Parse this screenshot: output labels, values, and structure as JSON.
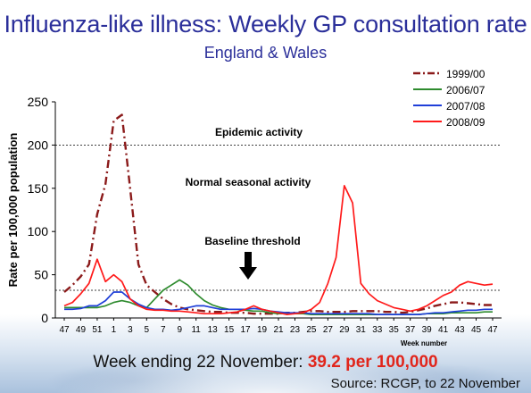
{
  "header": {
    "title": "Influenza-like illness: Weekly GP consultation rate",
    "subtitle": "England & Wales"
  },
  "chart_data": {
    "type": "line",
    "ylabel": "Rate per 100,000 population",
    "xlabel": "Week number",
    "ylim": [
      0,
      250
    ],
    "yticks": [
      0,
      50,
      100,
      150,
      200,
      250
    ],
    "x_labels": [
      "47",
      "49",
      "51",
      "1",
      "3",
      "5",
      "7",
      "9",
      "11",
      "13",
      "15",
      "17",
      "19",
      "21",
      "23",
      "25",
      "27",
      "29",
      "31",
      "33",
      "35",
      "37",
      "39",
      "41",
      "43",
      "45",
      "47"
    ],
    "weeks": [
      "47",
      "48",
      "49",
      "50",
      "51",
      "52",
      "1",
      "2",
      "3",
      "4",
      "5",
      "6",
      "7",
      "8",
      "9",
      "10",
      "11",
      "12",
      "13",
      "14",
      "15",
      "16",
      "17",
      "18",
      "19",
      "20",
      "21",
      "22",
      "23",
      "24",
      "25",
      "26",
      "27",
      "28",
      "29",
      "30",
      "31",
      "32",
      "33",
      "34",
      "35",
      "36",
      "37",
      "38",
      "39",
      "40",
      "41",
      "42",
      "43",
      "44",
      "45",
      "46",
      "47"
    ],
    "thresholds": [
      {
        "value": 200,
        "label": "Epidemic activity"
      },
      {
        "value": 32,
        "label": "Baseline threshold"
      }
    ],
    "annotations": [
      "Normal seasonal activity"
    ],
    "series": [
      {
        "name": "1999/00",
        "color": "#8b1a1a",
        "style": "dashdot",
        "values": [
          30,
          38,
          48,
          62,
          120,
          155,
          228,
          235,
          150,
          62,
          38,
          30,
          22,
          16,
          12,
          10,
          9,
          8,
          7,
          7,
          6,
          6,
          6,
          5,
          5,
          5,
          5,
          6,
          6,
          7,
          8,
          8,
          7,
          7,
          7,
          8,
          8,
          8,
          8,
          7,
          7,
          6,
          7,
          9,
          11,
          14,
          16,
          18,
          18,
          17,
          16,
          15,
          15
        ]
      },
      {
        "name": "2006/07",
        "color": "#2e8b2e",
        "style": "solid",
        "values": [
          12,
          12,
          12,
          12,
          12,
          14,
          18,
          20,
          18,
          14,
          12,
          22,
          32,
          38,
          44,
          38,
          28,
          20,
          15,
          12,
          10,
          10,
          9,
          8,
          8,
          6,
          5,
          5,
          5,
          5,
          4,
          4,
          4,
          4,
          4,
          4,
          4,
          4,
          4,
          4,
          4,
          4,
          4,
          4,
          5,
          5,
          5,
          6,
          6,
          6,
          6,
          7,
          7
        ]
      },
      {
        "name": "2007/08",
        "color": "#1f3fd8",
        "style": "solid",
        "values": [
          10,
          10,
          11,
          14,
          14,
          20,
          30,
          30,
          22,
          16,
          12,
          10,
          10,
          9,
          10,
          12,
          14,
          14,
          12,
          10,
          10,
          10,
          10,
          11,
          10,
          8,
          7,
          6,
          6,
          6,
          5,
          5,
          5,
          5,
          5,
          5,
          5,
          5,
          4,
          4,
          4,
          4,
          4,
          4,
          5,
          6,
          6,
          7,
          8,
          9,
          9,
          10,
          10
        ]
      },
      {
        "name": "2008/09",
        "color": "#ff1a1a",
        "style": "solid",
        "values": [
          14,
          18,
          28,
          40,
          68,
          42,
          50,
          42,
          22,
          14,
          10,
          9,
          9,
          8,
          8,
          7,
          6,
          5,
          5,
          5,
          6,
          7,
          10,
          14,
          10,
          8,
          6,
          4,
          5,
          6,
          10,
          18,
          40,
          70,
          153,
          133,
          40,
          28,
          20,
          16,
          12,
          10,
          8,
          10,
          14,
          20,
          26,
          30,
          38,
          42,
          40,
          38,
          39.2
        ]
      }
    ]
  },
  "footer": {
    "week_ending_prefix": "Week ending 22 November: ",
    "week_ending_value": "39.2 per 100,000",
    "source": "Source: RCGP, to 22 November"
  }
}
